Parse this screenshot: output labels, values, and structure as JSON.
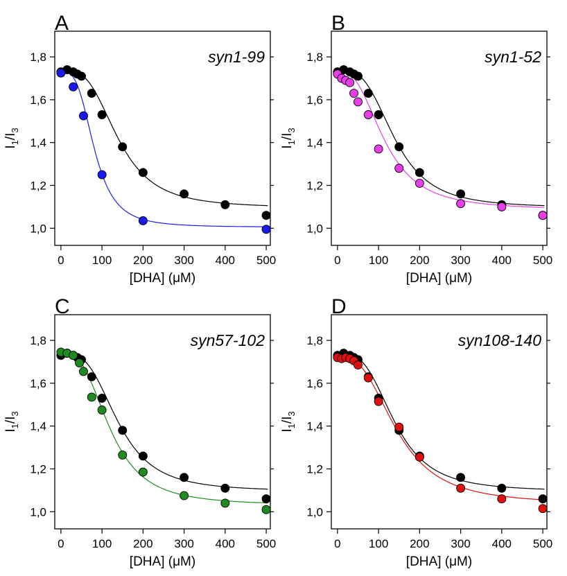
{
  "chart_data": [
    {
      "type": "scatter",
      "panel": "A",
      "annotation": "syn1-99",
      "xlabel": "[DHA] (μM)",
      "ylabel": "I1/I3",
      "ylabel_main": "I",
      "ylabel_sub1": "1",
      "ylabel_sep": "/I",
      "ylabel_sub2": "3",
      "xlim": [
        -15,
        510
      ],
      "ylim": [
        0.92,
        1.92
      ],
      "xticks": [
        0,
        100,
        200,
        300,
        400,
        500
      ],
      "xtick_labels": [
        "0",
        "100",
        "200",
        "300",
        "400",
        "500"
      ],
      "yticks": [
        1.0,
        1.2,
        1.4,
        1.6,
        1.8
      ],
      "ytick_labels": [
        "1,0",
        "1,2",
        "1,4",
        "1,6",
        "1,8"
      ],
      "grid": false,
      "series": [
        {
          "color": "#000000",
          "x": [
            0,
            15,
            30,
            40,
            50,
            75,
            100,
            150,
            200,
            300,
            400,
            500
          ],
          "y": [
            1.73,
            1.74,
            1.73,
            1.72,
            1.71,
            1.63,
            1.53,
            1.38,
            1.26,
            1.16,
            1.11,
            1.06
          ],
          "fit": {
            "top": 1.74,
            "bottom": 1.095,
            "ec50": 140,
            "hill": 3.2
          }
        },
        {
          "color": "#1a1af0",
          "x": [
            0,
            30,
            55,
            100,
            200,
            500
          ],
          "y": [
            1.725,
            1.66,
            1.525,
            1.25,
            1.035,
            0.995
          ],
          "fit": {
            "top": 1.73,
            "bottom": 1.005,
            "ec50": 82,
            "hill": 3.3
          }
        }
      ]
    },
    {
      "type": "scatter",
      "panel": "B",
      "annotation": "syn1-52",
      "xlabel": "[DHA] (μM)",
      "ylabel": "I1/I3",
      "ylabel_main": "I",
      "ylabel_sub1": "1",
      "ylabel_sep": "/I",
      "ylabel_sub2": "3",
      "xlim": [
        -15,
        510
      ],
      "ylim": [
        0.92,
        1.92
      ],
      "xticks": [
        0,
        100,
        200,
        300,
        400,
        500
      ],
      "xtick_labels": [
        "0",
        "100",
        "200",
        "300",
        "400",
        "500"
      ],
      "yticks": [
        1.0,
        1.2,
        1.4,
        1.6,
        1.8
      ],
      "ytick_labels": [
        "1,0",
        "1,2",
        "1,4",
        "1,6",
        "1,8"
      ],
      "grid": false,
      "series": [
        {
          "color": "#000000",
          "x": [
            0,
            15,
            30,
            40,
            50,
            75,
            100,
            150,
            200,
            300,
            400,
            500
          ],
          "y": [
            1.73,
            1.74,
            1.73,
            1.72,
            1.71,
            1.63,
            1.53,
            1.38,
            1.26,
            1.16,
            1.11,
            1.06
          ],
          "fit": {
            "top": 1.74,
            "bottom": 1.095,
            "ec50": 140,
            "hill": 3.2
          }
        },
        {
          "color": "#e83ee8",
          "x": [
            0,
            10,
            20,
            30,
            40,
            50,
            75,
            100,
            150,
            200,
            300,
            400,
            500
          ],
          "y": [
            1.72,
            1.7,
            1.69,
            1.68,
            1.63,
            1.59,
            1.53,
            1.37,
            1.28,
            1.21,
            1.115,
            1.1,
            1.06
          ],
          "fit": {
            "top": 1.735,
            "bottom": 1.085,
            "ec50": 115,
            "hill": 2.7
          }
        }
      ]
    },
    {
      "type": "scatter",
      "panel": "C",
      "annotation": "syn57-102",
      "xlabel": "[DHA] (μM)",
      "ylabel": "I1/I3",
      "ylabel_main": "I",
      "ylabel_sub1": "1",
      "ylabel_sep": "/I",
      "ylabel_sub2": "3",
      "xlim": [
        -15,
        510
      ],
      "ylim": [
        0.92,
        1.92
      ],
      "xticks": [
        0,
        100,
        200,
        300,
        400,
        500
      ],
      "xtick_labels": [
        "0",
        "100",
        "200",
        "300",
        "400",
        "500"
      ],
      "yticks": [
        1.0,
        1.2,
        1.4,
        1.6,
        1.8
      ],
      "ytick_labels": [
        "1,0",
        "1,2",
        "1,4",
        "1,6",
        "1,8"
      ],
      "grid": false,
      "series": [
        {
          "color": "#000000",
          "x": [
            0,
            15,
            30,
            40,
            50,
            75,
            100,
            150,
            200,
            300,
            400,
            500
          ],
          "y": [
            1.73,
            1.74,
            1.73,
            1.72,
            1.71,
            1.63,
            1.53,
            1.38,
            1.26,
            1.16,
            1.11,
            1.06
          ],
          "fit": {
            "top": 1.74,
            "bottom": 1.095,
            "ec50": 140,
            "hill": 3.2
          }
        },
        {
          "color": "#1f8a1f",
          "x": [
            0,
            15,
            30,
            45,
            55,
            75,
            100,
            150,
            200,
            300,
            400,
            500
          ],
          "y": [
            1.745,
            1.74,
            1.73,
            1.695,
            1.655,
            1.535,
            1.475,
            1.265,
            1.185,
            1.075,
            1.04,
            1.01
          ],
          "fit": {
            "top": 1.745,
            "bottom": 1.03,
            "ec50": 120,
            "hill": 2.9
          }
        }
      ]
    },
    {
      "type": "scatter",
      "panel": "D",
      "annotation": "syn108-140",
      "xlabel": "[DHA] (μM)",
      "ylabel": "I1/I3",
      "ylabel_main": "I",
      "ylabel_sub1": "1",
      "ylabel_sep": "/I",
      "ylabel_sub2": "3",
      "xlim": [
        -15,
        510
      ],
      "ylim": [
        0.92,
        1.92
      ],
      "xticks": [
        0,
        100,
        200,
        300,
        400,
        500
      ],
      "xtick_labels": [
        "0",
        "100",
        "200",
        "300",
        "400",
        "500"
      ],
      "yticks": [
        1.0,
        1.2,
        1.4,
        1.6,
        1.8
      ],
      "ytick_labels": [
        "1,0",
        "1,2",
        "1,4",
        "1,6",
        "1,8"
      ],
      "grid": false,
      "series": [
        {
          "color": "#000000",
          "x": [
            0,
            15,
            30,
            40,
            50,
            75,
            100,
            150,
            200,
            300,
            400,
            500
          ],
          "y": [
            1.73,
            1.74,
            1.73,
            1.72,
            1.71,
            1.63,
            1.53,
            1.38,
            1.26,
            1.16,
            1.11,
            1.06
          ],
          "fit": {
            "top": 1.74,
            "bottom": 1.095,
            "ec50": 140,
            "hill": 3.2
          }
        },
        {
          "color": "#e01010",
          "x": [
            0,
            10,
            20,
            30,
            40,
            50,
            75,
            100,
            150,
            200,
            300,
            400,
            500
          ],
          "y": [
            1.72,
            1.715,
            1.72,
            1.715,
            1.705,
            1.685,
            1.625,
            1.515,
            1.395,
            1.255,
            1.11,
            1.06,
            1.015
          ],
          "fit": {
            "top": 1.725,
            "bottom": 1.035,
            "ec50": 145,
            "hill": 2.8
          }
        }
      ]
    }
  ]
}
